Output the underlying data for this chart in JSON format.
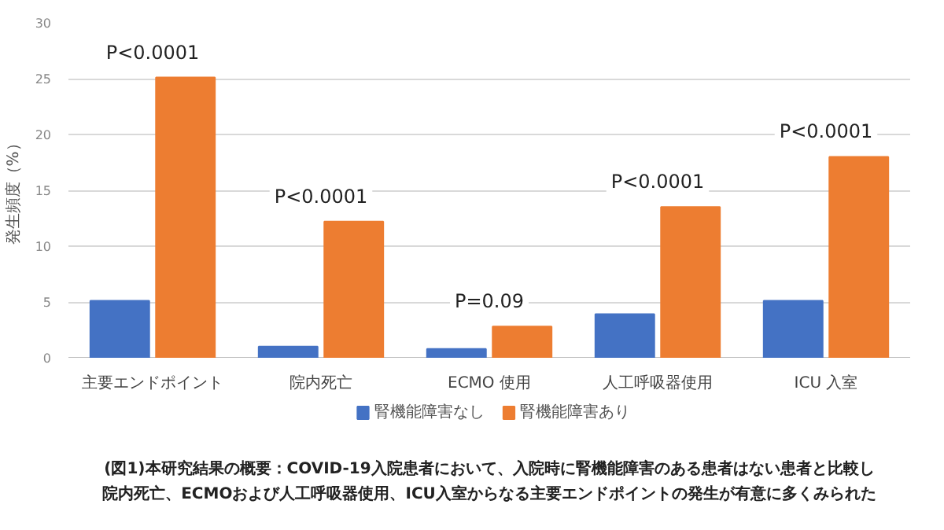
{
  "chart_data": {
    "type": "bar",
    "ylabel": "発生頻度（%）",
    "categories": [
      "主要エンドポイント",
      "院内死亡",
      "ECMO 使用",
      "人工呼吸器使用",
      "ICU 入室"
    ],
    "series": [
      {
        "name": "腎機能障害なし",
        "color": "#4472c4",
        "values": [
          5.1,
          1.0,
          0.8,
          3.9,
          5.1
        ]
      },
      {
        "name": "腎機能障害あり",
        "color": "#ed7d31",
        "values": [
          25.1,
          12.2,
          2.8,
          13.5,
          18.0
        ]
      }
    ],
    "ylim": [
      0,
      30
    ],
    "yticks": [
      0,
      5,
      10,
      15,
      20,
      25,
      30
    ],
    "grid": "y",
    "legend": "bottom",
    "annotations": [
      "P<0.0001",
      "P<0.0001",
      "P=0.09",
      "P<0.0001",
      "P<0.0001",
      "(図1)本研究結果の概要：COVID-19入院患者において、入院時に腎機能障害のある患者はない患者と比較し",
      "院内死亡、ECMOおよび人工呼吸器使用、ICU入室からなる主要エンドポイントの発生が有意に多くみられた"
    ]
  }
}
